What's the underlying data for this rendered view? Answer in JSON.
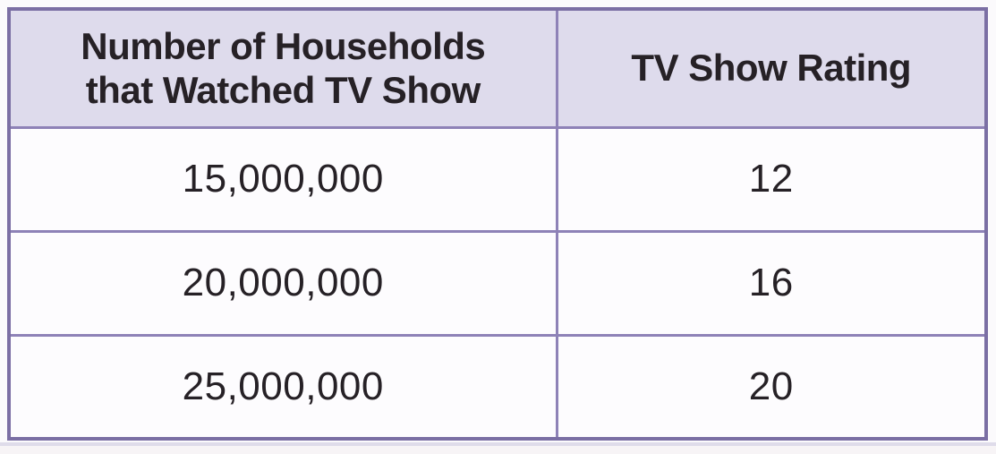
{
  "chart_data": {
    "type": "table",
    "title": "",
    "columns": [
      "Number of Households\nthat Watched TV Show",
      "TV Show Rating"
    ],
    "rows": [
      [
        "15,000,000",
        "12"
      ],
      [
        "20,000,000",
        "16"
      ],
      [
        "25,000,000",
        "20"
      ]
    ]
  },
  "colors": {
    "outer_border": "#7b6fa4",
    "inner_border": "#8e82b7",
    "header_bg": "#dedbec",
    "cell_bg": "#fdfcfe",
    "text": "#262126",
    "page_bg": "#fbfafc",
    "rule": "#dfdcea",
    "strip": "#f7f4f6"
  }
}
